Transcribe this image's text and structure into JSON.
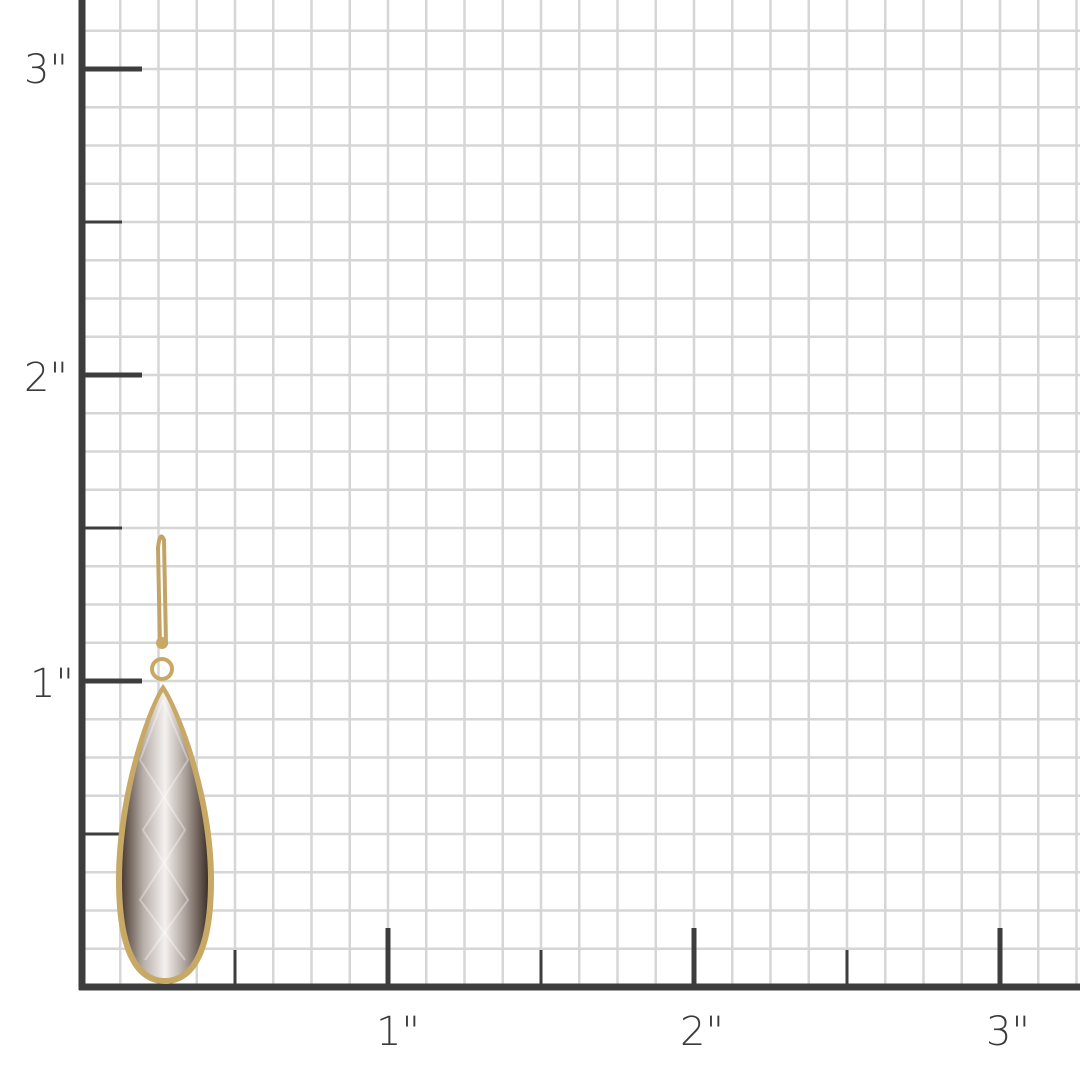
{
  "ruler": {
    "unit_mark": "\"",
    "x_labels": [
      "1\"",
      "2\"",
      "3\""
    ],
    "y_labels": [
      "1\"",
      "2\"",
      "3\""
    ],
    "grid_divisions_per_inch": 8,
    "axis_color": "#3d3d3d",
    "grid_color": "#d6d6d6"
  },
  "product": {
    "icon": "teardrop-earring-image",
    "stone_color": "#8a7f78",
    "metal_color": "#c8a865"
  }
}
